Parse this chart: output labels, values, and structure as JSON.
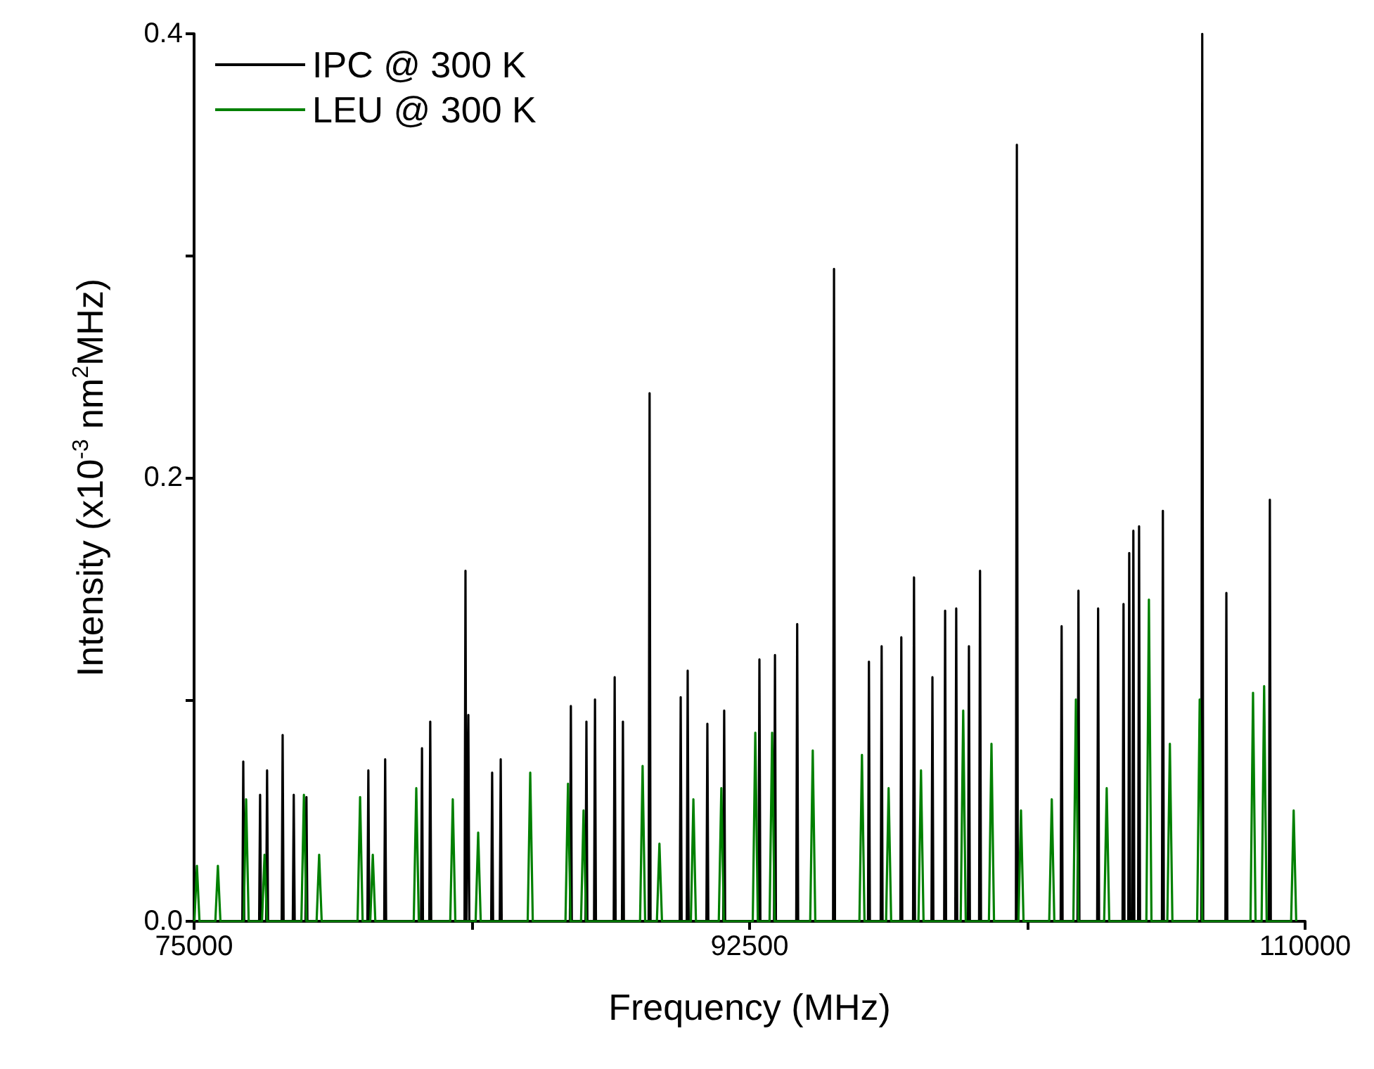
{
  "chart_data": {
    "type": "line",
    "xlabel": "Frequency (MHz)",
    "ylabel": "Intensity (x10$^{-3}$ nm$^{2}$MHz)",
    "xlim": [
      75000,
      110000
    ],
    "xticks": [
      75000,
      {
        "value": 83750,
        "label": null
      },
      92500,
      {
        "value": 101250,
        "label": null
      },
      110000
    ],
    "ylim": [
      0,
      0.4
    ],
    "yticks": [
      {
        "value": 0,
        "label": "0.0"
      },
      {
        "value": 0.1,
        "label": null
      },
      {
        "value": 0.2,
        "label": "0.2"
      },
      {
        "value": 0.3,
        "label": null
      },
      {
        "value": 0.4,
        "label": "0.4"
      }
    ],
    "grid": false,
    "legend": "top left",
    "marker": "none",
    "line_style": "solid",
    "series": [
      {
        "name": "IPC @ 300 K",
        "color": "#000000",
        "x": [
          76520,
          76550,
          76580,
          77050,
          77080,
          77110,
          77270,
          77300,
          77330,
          77760,
          77790,
          77820,
          78110,
          78140,
          78170,
          78510,
          78540,
          78570,
          80460,
          80490,
          80520,
          80990,
          81020,
          81050,
          82150,
          82180,
          82210,
          82410,
          82440,
          82470,
          83520,
          83550,
          83580,
          83610,
          83640,
          83670,
          84360,
          84390,
          84420,
          84630,
          84660,
          84690,
          86840,
          86870,
          86900,
          87330,
          87360,
          87390,
          87600,
          87630,
          87660,
          88220,
          88250,
          88280,
          88480,
          88510,
          88540,
          89320,
          89350,
          89380,
          90300,
          90330,
          90360,
          90520,
          90550,
          90580,
          91140,
          91170,
          91200,
          91670,
          91700,
          91730,
          92780,
          92810,
          92840,
          93270,
          93300,
          93330,
          93970,
          94000,
          94030,
          95130,
          95160,
          95190,
          96230,
          96260,
          96290,
          96630,
          96660,
          96690,
          97250,
          97280,
          97310,
          97650,
          97680,
          97710,
          98230,
          98260,
          98290,
          98630,
          98660,
          98690,
          98980,
          99010,
          99040,
          99380,
          99410,
          99440,
          99730,
          99760,
          99790,
          100890,
          100920,
          100950,
          102300,
          102330,
          102360,
          102830,
          102860,
          102890,
          103450,
          103480,
          103510,
          104250,
          104280,
          104310,
          104430,
          104460,
          104490,
          104560,
          104590,
          104620,
          104740,
          104770,
          104800,
          105490,
          105520,
          105550,
          106730,
          106760,
          106790,
          107490,
          107520,
          107550,
          108860,
          108890,
          108920
        ],
        "values": [
          0,
          0.072,
          0,
          0,
          0.057,
          0,
          0,
          0.068,
          0,
          0,
          0.084,
          0,
          0,
          0.057,
          0,
          0,
          0.056,
          0,
          0,
          0.068,
          0,
          0,
          0.073,
          0,
          0,
          0.078,
          0,
          0,
          0.09,
          0,
          0,
          0.158,
          0,
          0,
          0.093,
          0,
          0,
          0.067,
          0,
          0,
          0.073,
          0,
          0,
          0.097,
          0,
          0,
          0.09,
          0,
          0,
          0.1,
          0,
          0,
          0.11,
          0,
          0,
          0.09,
          0,
          0,
          0.238,
          0,
          0,
          0.101,
          0,
          0,
          0.113,
          0,
          0,
          0.089,
          0,
          0,
          0.095,
          0,
          0,
          0.118,
          0,
          0,
          0.12,
          0,
          0,
          0.134,
          0,
          0,
          0.294,
          0,
          0,
          0.117,
          0,
          0,
          0.124,
          0,
          0,
          0.128,
          0,
          0,
          0.155,
          0,
          0,
          0.11,
          0,
          0,
          0.14,
          0,
          0,
          0.141,
          0,
          0,
          0.124,
          0,
          0,
          0.158,
          0,
          0,
          0.35,
          0,
          0,
          0.133,
          0,
          0,
          0.149,
          0,
          0,
          0.141,
          0,
          0,
          0.143,
          0,
          0,
          0.166,
          0,
          0,
          0.176,
          0,
          0,
          0.178,
          0,
          0,
          0.185,
          0,
          0,
          0.4,
          0,
          0,
          0.148,
          0,
          0,
          0.19,
          0
        ]
      },
      {
        "name": "LEU @ 300 K",
        "color": "#008000",
        "x": [
          75010,
          75090,
          75170,
          75670,
          75750,
          75830,
          76560,
          76640,
          76720,
          77140,
          77220,
          77300,
          78380,
          78460,
          78540,
          78860,
          78940,
          79020,
          80150,
          80230,
          80310,
          80550,
          80630,
          80710,
          81920,
          82000,
          82080,
          83070,
          83150,
          83230,
          83870,
          83950,
          84030,
          85510,
          85590,
          85670,
          86700,
          86780,
          86860,
          87190,
          87270,
          87350,
          89050,
          89130,
          89210,
          89580,
          89660,
          89740,
          90650,
          90730,
          90810,
          91530,
          91610,
          91690,
          92600,
          92680,
          92760,
          93130,
          93210,
          93290,
          94410,
          94490,
          94570,
          95960,
          96040,
          96120,
          96800,
          96880,
          96960,
          97820,
          97900,
          97980,
          99150,
          99230,
          99310,
          100040,
          100120,
          100200,
          100970,
          101050,
          101130,
          101940,
          102020,
          102100,
          102700,
          102780,
          102860,
          103670,
          103750,
          103830,
          105000,
          105080,
          105160,
          105660,
          105740,
          105820,
          106600,
          106680,
          106760,
          108280,
          108360,
          108440,
          108630,
          108710,
          108790,
          109560,
          109640,
          109720
        ],
        "values": [
          0,
          0.025,
          0,
          0,
          0.025,
          0,
          0,
          0.055,
          0,
          0,
          0.03,
          0,
          0,
          0.057,
          0,
          0,
          0.03,
          0,
          0,
          0.056,
          0,
          0,
          0.03,
          0,
          0,
          0.06,
          0,
          0,
          0.055,
          0,
          0,
          0.04,
          0,
          0,
          0.067,
          0,
          0,
          0.062,
          0,
          0,
          0.05,
          0,
          0,
          0.07,
          0,
          0,
          0.035,
          0,
          0,
          0.055,
          0,
          0,
          0.06,
          0,
          0,
          0.085,
          0,
          0,
          0.085,
          0,
          0,
          0.077,
          0,
          0,
          0.075,
          0,
          0,
          0.06,
          0,
          0,
          0.068,
          0,
          0,
          0.095,
          0,
          0,
          0.08,
          0,
          0,
          0.05,
          0,
          0,
          0.055,
          0,
          0,
          0.1,
          0,
          0,
          0.06,
          0,
          0,
          0.145,
          0,
          0,
          0.08,
          0,
          0,
          0.1,
          0,
          0,
          0.103,
          0,
          0,
          0.106,
          0,
          0,
          0.05,
          0
        ]
      }
    ]
  }
}
